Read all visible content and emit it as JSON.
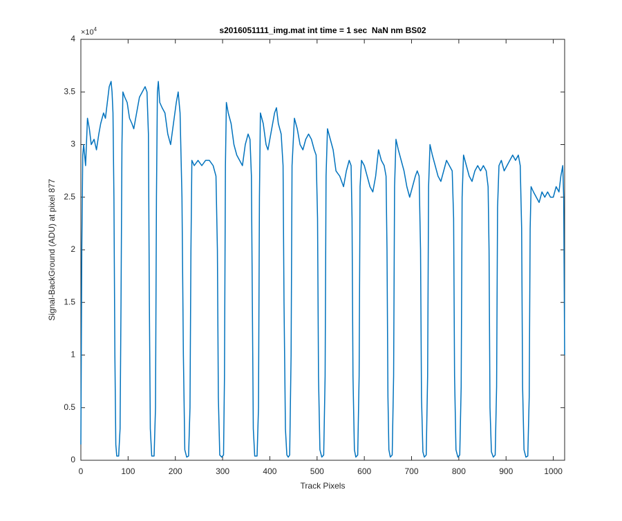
{
  "chart_data": {
    "type": "line",
    "title": "s2016051111_img.mat int time = 1 sec  NaN nm BS02",
    "x_label": "Track Pixels",
    "y_label": "Signal-BackGround (ADU) at pixel 877",
    "y_exponent": {
      "base": "×10",
      "power": "4"
    },
    "xlim": [
      0,
      1024
    ],
    "ylim": [
      0,
      4
    ],
    "xticks": [
      0,
      100,
      200,
      300,
      400,
      500,
      600,
      700,
      800,
      900,
      1000
    ],
    "yticks": [
      0,
      0.5,
      1,
      1.5,
      2,
      2.5,
      3,
      3.5,
      4
    ],
    "grid": false,
    "x": [
      0,
      2,
      4,
      6,
      10,
      14,
      18,
      22,
      28,
      33,
      38,
      42,
      48,
      52,
      56,
      60,
      64,
      66,
      68,
      70,
      72,
      74,
      76,
      80,
      83,
      85,
      87,
      89,
      93,
      98,
      103,
      108,
      112,
      118,
      124,
      130,
      136,
      140,
      143,
      145,
      147,
      150,
      155,
      158,
      160,
      162,
      164,
      167,
      172,
      178,
      184,
      190,
      196,
      202,
      206,
      210,
      214,
      217,
      220,
      224,
      228,
      231,
      233,
      235,
      240,
      248,
      256,
      264,
      272,
      280,
      286,
      289,
      291,
      294,
      298,
      302,
      304,
      306,
      308,
      312,
      318,
      324,
      330,
      336,
      342,
      348,
      354,
      358,
      361,
      363,
      365,
      368,
      373,
      376,
      378,
      380,
      386,
      392,
      396,
      402,
      410,
      414,
      418,
      424,
      428,
      430,
      433,
      436,
      439,
      442,
      445,
      447,
      452,
      458,
      464,
      470,
      476,
      482,
      488,
      494,
      498,
      501,
      503,
      506,
      510,
      514,
      517,
      519,
      522,
      528,
      534,
      540,
      548,
      556,
      562,
      568,
      572,
      574,
      576,
      579,
      582,
      586,
      589,
      591,
      594,
      600,
      606,
      612,
      618,
      624,
      630,
      636,
      642,
      646,
      648,
      650,
      652,
      655,
      659,
      662,
      664,
      667,
      672,
      678,
      684,
      690,
      696,
      702,
      708,
      712,
      716,
      719,
      721,
      724,
      727,
      731,
      734,
      736,
      739,
      744,
      750,
      756,
      762,
      768,
      774,
      780,
      786,
      789,
      791,
      794,
      798,
      802,
      805,
      807,
      810,
      816,
      822,
      828,
      834,
      840,
      846,
      852,
      858,
      862,
      864,
      866,
      869,
      873,
      877,
      880,
      882,
      885,
      890,
      896,
      902,
      908,
      914,
      920,
      926,
      930,
      933,
      935,
      938,
      942,
      946,
      949,
      951,
      953,
      958,
      964,
      970,
      976,
      982,
      988,
      994,
      1000,
      1006,
      1012,
      1016,
      1020,
      1022,
      1024
    ],
    "series": [
      {
        "color": "#0072bd",
        "values": [
          0.15,
          2.0,
          2.9,
          3.0,
          2.8,
          3.25,
          3.15,
          3.0,
          3.05,
          2.95,
          3.1,
          3.2,
          3.3,
          3.25,
          3.4,
          3.55,
          3.6,
          3.5,
          3.3,
          2.5,
          1.0,
          0.15,
          0.04,
          0.04,
          0.3,
          1.5,
          3.0,
          3.5,
          3.45,
          3.4,
          3.25,
          3.2,
          3.15,
          3.3,
          3.45,
          3.5,
          3.55,
          3.5,
          3.1,
          1.5,
          0.3,
          0.04,
          0.04,
          0.5,
          2.5,
          3.5,
          3.6,
          3.4,
          3.35,
          3.3,
          3.1,
          3.0,
          3.2,
          3.4,
          3.5,
          3.3,
          2.5,
          1.0,
          0.1,
          0.03,
          0.04,
          0.5,
          2.0,
          2.85,
          2.8,
          2.85,
          2.8,
          2.85,
          2.85,
          2.8,
          2.7,
          2.0,
          0.6,
          0.05,
          0.03,
          0.05,
          0.8,
          2.8,
          3.4,
          3.3,
          3.2,
          3.0,
          2.9,
          2.85,
          2.8,
          3.0,
          3.1,
          3.05,
          2.7,
          1.5,
          0.3,
          0.04,
          0.04,
          0.5,
          2.5,
          3.3,
          3.2,
          3.0,
          2.95,
          3.1,
          3.3,
          3.35,
          3.2,
          3.1,
          2.8,
          1.5,
          0.3,
          0.05,
          0.03,
          0.05,
          1.0,
          2.8,
          3.25,
          3.15,
          3.0,
          2.95,
          3.05,
          3.1,
          3.05,
          2.95,
          2.9,
          2.3,
          0.8,
          0.1,
          0.03,
          0.05,
          0.8,
          2.7,
          3.15,
          3.05,
          2.95,
          2.75,
          2.7,
          2.6,
          2.75,
          2.85,
          2.8,
          2.3,
          0.8,
          0.1,
          0.03,
          0.05,
          0.8,
          2.6,
          2.85,
          2.8,
          2.7,
          2.6,
          2.55,
          2.7,
          2.95,
          2.85,
          2.8,
          2.7,
          2.0,
          0.6,
          0.1,
          0.03,
          0.05,
          0.8,
          2.6,
          3.05,
          2.95,
          2.85,
          2.75,
          2.6,
          2.5,
          2.6,
          2.7,
          2.75,
          2.7,
          2.0,
          0.6,
          0.08,
          0.03,
          0.05,
          0.8,
          2.6,
          3.0,
          2.9,
          2.8,
          2.7,
          2.65,
          2.75,
          2.85,
          2.8,
          2.75,
          2.3,
          0.8,
          0.1,
          0.03,
          0.05,
          0.7,
          2.5,
          2.9,
          2.8,
          2.7,
          2.65,
          2.75,
          2.8,
          2.75,
          2.8,
          2.75,
          2.6,
          2.0,
          0.5,
          0.08,
          0.03,
          0.05,
          0.7,
          2.4,
          2.8,
          2.85,
          2.75,
          2.8,
          2.85,
          2.9,
          2.85,
          2.9,
          2.8,
          2.2,
          0.7,
          0.1,
          0.03,
          0.04,
          0.6,
          2.2,
          2.6,
          2.55,
          2.5,
          2.45,
          2.55,
          2.5,
          2.55,
          2.5,
          2.5,
          2.6,
          2.55,
          2.7,
          2.8,
          2.5,
          1.0
        ]
      }
    ]
  }
}
